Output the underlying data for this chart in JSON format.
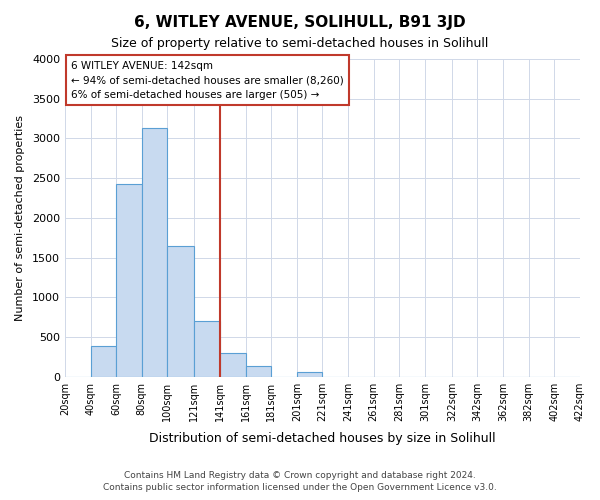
{
  "title": "6, WITLEY AVENUE, SOLIHULL, B91 3JD",
  "subtitle": "Size of property relative to semi-detached houses in Solihull",
  "xlabel": "Distribution of semi-detached houses by size in Solihull",
  "ylabel": "Number of semi-detached properties",
  "footnote1": "Contains HM Land Registry data © Crown copyright and database right 2024.",
  "footnote2": "Contains public sector information licensed under the Open Government Licence v3.0.",
  "bar_edges": [
    20,
    40,
    60,
    80,
    100,
    121,
    141,
    161,
    181,
    201,
    221,
    241,
    261,
    281,
    301,
    322,
    342,
    362,
    382,
    402,
    422
  ],
  "bar_heights": [
    0,
    380,
    2420,
    3130,
    1640,
    700,
    300,
    140,
    0,
    60,
    0,
    0,
    0,
    0,
    0,
    0,
    0,
    0,
    0,
    0
  ],
  "bar_color": "#c8daf0",
  "bar_edge_color": "#5a9fd4",
  "vline_x": 141,
  "vline_color": "#c0392b",
  "annotation_title": "6 WITLEY AVENUE: 142sqm",
  "annotation_line1": "← 94% of semi-detached houses are smaller (8,260)",
  "annotation_line2": "6% of semi-detached houses are larger (505) →",
  "annotation_box_color": "#c0392b",
  "ylim": [
    0,
    4000
  ],
  "yticks": [
    0,
    500,
    1000,
    1500,
    2000,
    2500,
    3000,
    3500,
    4000
  ],
  "xtick_labels": [
    "20sqm",
    "40sqm",
    "60sqm",
    "80sqm",
    "100sqm",
    "121sqm",
    "141sqm",
    "161sqm",
    "181sqm",
    "201sqm",
    "221sqm",
    "241sqm",
    "261sqm",
    "281sqm",
    "301sqm",
    "322sqm",
    "342sqm",
    "362sqm",
    "382sqm",
    "402sqm",
    "422sqm"
  ],
  "bg_color": "#ffffff",
  "grid_color": "#d0d8e8"
}
